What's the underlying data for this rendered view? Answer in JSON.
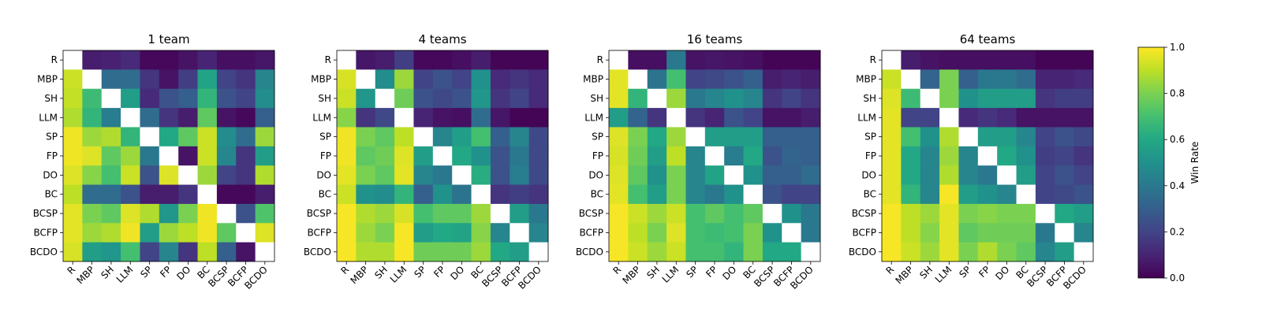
{
  "colorbar": {
    "label": "Win Rate",
    "ticks": [
      "0.0",
      "0.2",
      "0.4",
      "0.6",
      "0.8",
      "1.0"
    ],
    "range": [
      0,
      1
    ],
    "colormap": "viridis"
  },
  "chart_data": [
    {
      "type": "heatmap",
      "title": "1 team",
      "x_categories": [
        "R",
        "MBP",
        "SH",
        "LLM",
        "SP",
        "FP",
        "DO",
        "BC",
        "BCSP",
        "BCFP",
        "BCDO"
      ],
      "y_categories": [
        "R",
        "MBP",
        "SH",
        "LLM",
        "SP",
        "FP",
        "DO",
        "BC",
        "BCSP",
        "BCFP",
        "BCDO"
      ],
      "values": [
        [
          null,
          0.08,
          0.09,
          0.12,
          0.02,
          0.02,
          0.05,
          0.1,
          0.04,
          0.04,
          0.06
        ],
        [
          0.92,
          null,
          0.35,
          0.35,
          0.15,
          0.05,
          0.18,
          0.58,
          0.2,
          0.15,
          0.45
        ],
        [
          0.91,
          0.68,
          null,
          0.55,
          0.12,
          0.25,
          0.3,
          0.65,
          0.25,
          0.2,
          0.48
        ],
        [
          0.88,
          0.65,
          0.42,
          null,
          0.35,
          0.15,
          0.08,
          0.75,
          0.05,
          0.02,
          0.3
        ],
        [
          0.98,
          0.85,
          0.88,
          0.65,
          null,
          0.6,
          0.75,
          0.92,
          0.48,
          0.35,
          0.85
        ],
        [
          0.98,
          0.95,
          0.75,
          0.85,
          0.4,
          null,
          0.05,
          0.92,
          0.45,
          0.15,
          0.55
        ],
        [
          0.95,
          0.82,
          0.7,
          0.92,
          0.25,
          0.95,
          null,
          0.85,
          0.2,
          0.15,
          0.88
        ],
        [
          0.9,
          0.35,
          0.35,
          0.25,
          0.08,
          0.08,
          0.15,
          null,
          0.02,
          0.02,
          0.08
        ],
        [
          0.96,
          0.8,
          0.75,
          0.95,
          0.88,
          0.52,
          0.8,
          0.98,
          null,
          0.25,
          0.72
        ],
        [
          0.96,
          0.85,
          0.88,
          0.98,
          0.55,
          0.85,
          0.9,
          0.98,
          0.75,
          null,
          0.95
        ],
        [
          0.94,
          0.55,
          0.52,
          0.7,
          0.2,
          0.45,
          0.15,
          0.9,
          0.3,
          0.05,
          null
        ]
      ]
    },
    {
      "type": "heatmap",
      "title": "4 teams",
      "x_categories": [
        "R",
        "MBP",
        "SH",
        "LLM",
        "SP",
        "FP",
        "DO",
        "BC",
        "BCSP",
        "BCFP",
        "BCDO"
      ],
      "y_categories": [
        "R",
        "MBP",
        "SH",
        "LLM",
        "SP",
        "FP",
        "DO",
        "BC",
        "BCSP",
        "BCFP",
        "BCDO"
      ],
      "values": [
        [
          null,
          0.06,
          0.08,
          0.18,
          0.02,
          0.02,
          0.04,
          0.08,
          0.01,
          0.01,
          0.01
        ],
        [
          0.94,
          null,
          0.48,
          0.85,
          0.2,
          0.25,
          0.2,
          0.5,
          0.12,
          0.15,
          0.12
        ],
        [
          0.92,
          0.52,
          null,
          0.78,
          0.25,
          0.22,
          0.25,
          0.52,
          0.15,
          0.2,
          0.12
        ],
        [
          0.82,
          0.15,
          0.22,
          null,
          0.1,
          0.05,
          0.04,
          0.35,
          0.06,
          0.01,
          0.01
        ],
        [
          0.98,
          0.8,
          0.75,
          0.9,
          null,
          0.45,
          0.55,
          0.7,
          0.3,
          0.45,
          0.22
        ],
        [
          0.98,
          0.75,
          0.78,
          0.95,
          0.55,
          null,
          0.6,
          0.5,
          0.25,
          0.4,
          0.22
        ],
        [
          0.96,
          0.8,
          0.75,
          0.96,
          0.45,
          0.4,
          null,
          0.62,
          0.25,
          0.42,
          0.22
        ],
        [
          0.92,
          0.5,
          0.48,
          0.65,
          0.3,
          0.5,
          0.38,
          null,
          0.15,
          0.18,
          0.15
        ],
        [
          0.99,
          0.88,
          0.85,
          0.94,
          0.7,
          0.75,
          0.75,
          0.85,
          null,
          0.55,
          0.4
        ],
        [
          0.99,
          0.85,
          0.8,
          0.99,
          0.55,
          0.6,
          0.58,
          0.82,
          0.45,
          null,
          0.45
        ],
        [
          0.99,
          0.88,
          0.88,
          0.99,
          0.78,
          0.78,
          0.78,
          0.85,
          0.6,
          0.55,
          null
        ]
      ]
    },
    {
      "type": "heatmap",
      "title": "16 teams",
      "x_categories": [
        "R",
        "MBP",
        "SH",
        "LLM",
        "SP",
        "FP",
        "DO",
        "BC",
        "BCSP",
        "BCFP",
        "BCDO"
      ],
      "y_categories": [
        "R",
        "MBP",
        "SH",
        "LLM",
        "SP",
        "FP",
        "DO",
        "BC",
        "BCSP",
        "BCFP",
        "BCDO"
      ],
      "values": [
        [
          null,
          0.04,
          0.04,
          0.4,
          0.05,
          0.06,
          0.05,
          0.04,
          0.01,
          0.01,
          0.01
        ],
        [
          0.96,
          null,
          0.38,
          0.7,
          0.2,
          0.22,
          0.25,
          0.3,
          0.08,
          0.1,
          0.08
        ],
        [
          0.96,
          0.65,
          null,
          0.85,
          0.4,
          0.45,
          0.5,
          0.45,
          0.15,
          0.2,
          0.15
        ],
        [
          0.55,
          0.32,
          0.15,
          null,
          0.15,
          0.1,
          0.25,
          0.2,
          0.05,
          0.05,
          0.08
        ],
        [
          0.95,
          0.8,
          0.6,
          0.85,
          null,
          0.55,
          0.55,
          0.55,
          0.3,
          0.3,
          0.3
        ],
        [
          0.94,
          0.78,
          0.55,
          0.9,
          0.45,
          null,
          0.42,
          0.6,
          0.25,
          0.32,
          0.3
        ],
        [
          0.95,
          0.75,
          0.5,
          0.8,
          0.45,
          0.58,
          null,
          0.5,
          0.3,
          0.3,
          0.35
        ],
        [
          0.96,
          0.7,
          0.55,
          0.8,
          0.45,
          0.4,
          0.5,
          null,
          0.25,
          0.2,
          0.2
        ],
        [
          0.99,
          0.92,
          0.85,
          0.92,
          0.7,
          0.75,
          0.7,
          0.75,
          null,
          0.5,
          0.4
        ],
        [
          0.99,
          0.9,
          0.8,
          0.95,
          0.7,
          0.68,
          0.7,
          0.8,
          0.5,
          null,
          0.4
        ],
        [
          0.99,
          0.92,
          0.85,
          0.92,
          0.7,
          0.7,
          0.65,
          0.8,
          0.6,
          0.6,
          null
        ]
      ]
    },
    {
      "type": "heatmap",
      "title": "64 teams",
      "x_categories": [
        "R",
        "MBP",
        "SH",
        "LLM",
        "SP",
        "FP",
        "DO",
        "BC",
        "BCSP",
        "BCFP",
        "BCDO"
      ],
      "y_categories": [
        "R",
        "MBP",
        "SH",
        "LLM",
        "SP",
        "FP",
        "DO",
        "BC",
        "BCSP",
        "BCFP",
        "BCDO"
      ],
      "values": [
        [
          null,
          0.08,
          0.05,
          0.04,
          0.04,
          0.04,
          0.04,
          0.04,
          0.01,
          0.01,
          0.01
        ],
        [
          0.92,
          null,
          0.32,
          0.8,
          0.3,
          0.4,
          0.4,
          0.35,
          0.1,
          0.1,
          0.12
        ],
        [
          0.95,
          0.68,
          null,
          0.8,
          0.5,
          0.55,
          0.55,
          0.55,
          0.15,
          0.18,
          0.18
        ],
        [
          0.96,
          0.2,
          0.2,
          null,
          0.12,
          0.15,
          0.12,
          0.05,
          0.05,
          0.05,
          0.05
        ],
        [
          0.96,
          0.7,
          0.5,
          0.88,
          null,
          0.55,
          0.55,
          0.45,
          0.2,
          0.25,
          0.22
        ],
        [
          0.96,
          0.6,
          0.45,
          0.85,
          0.45,
          null,
          0.6,
          0.5,
          0.18,
          0.2,
          0.15
        ],
        [
          0.96,
          0.6,
          0.45,
          0.88,
          0.45,
          0.4,
          null,
          0.55,
          0.2,
          0.25,
          0.2
        ],
        [
          0.96,
          0.65,
          0.45,
          0.99,
          0.55,
          0.5,
          0.45,
          null,
          0.2,
          0.22,
          0.25
        ],
        [
          0.99,
          0.9,
          0.85,
          0.96,
          0.8,
          0.82,
          0.8,
          0.8,
          null,
          0.6,
          0.55
        ],
        [
          0.99,
          0.9,
          0.82,
          0.96,
          0.75,
          0.78,
          0.78,
          0.78,
          0.4,
          null,
          0.45
        ],
        [
          0.99,
          0.92,
          0.85,
          0.96,
          0.8,
          0.88,
          0.8,
          0.75,
          0.45,
          0.55,
          null
        ]
      ]
    }
  ]
}
